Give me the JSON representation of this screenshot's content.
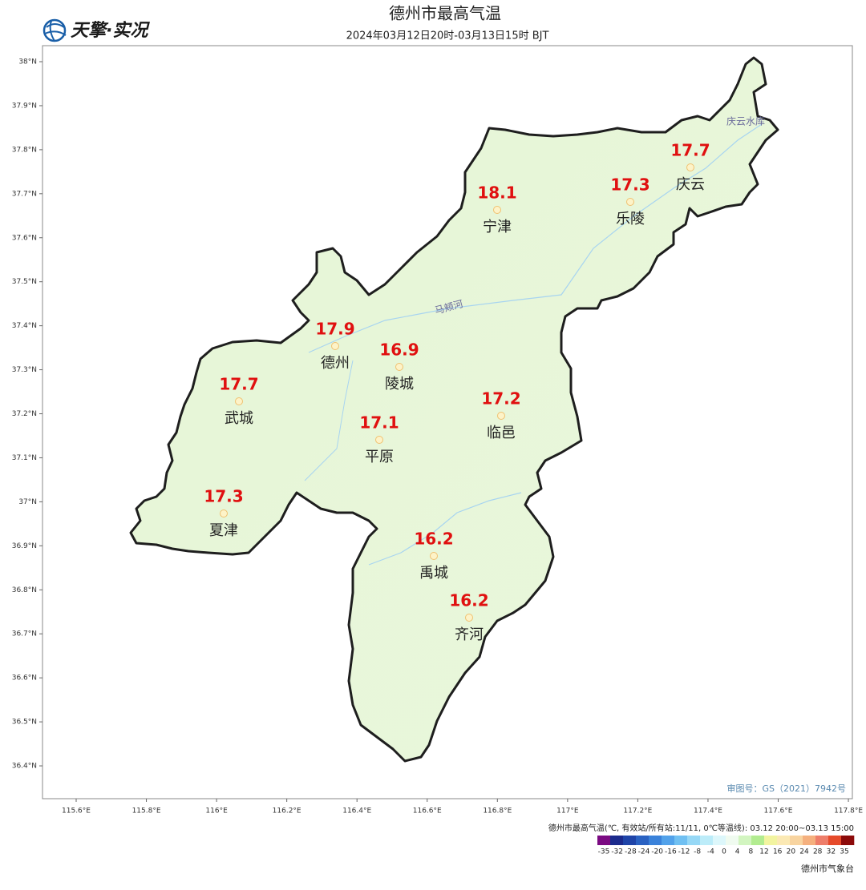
{
  "logo": "天擎·实况",
  "header": {
    "title": "德州市最高气温",
    "subtitle": "2024年03月12日20时-03月13日15时 BJT"
  },
  "lat_ticks": [
    "38°N",
    "37.9°N",
    "37.8°N",
    "37.7°N",
    "37.6°N",
    "37.5°N",
    "37.4°N",
    "37.3°N",
    "37.2°N",
    "37.1°N",
    "37°N",
    "36.9°N",
    "36.8°N",
    "36.7°N",
    "36.6°N",
    "36.5°N",
    "36.4°N"
  ],
  "lon_ticks": [
    "115.6°E",
    "115.8°E",
    "116°E",
    "116.2°E",
    "116.4°E",
    "116.6°E",
    "116.8°E",
    "117°E",
    "117.2°E",
    "117.4°E",
    "117.6°E",
    "117.8°E"
  ],
  "water_labels": [
    "马颊河",
    "庆云水库"
  ],
  "stations": [
    {
      "name": "宁津",
      "value": 18.1
    },
    {
      "name": "乐陵",
      "value": 17.3
    },
    {
      "name": "庆云",
      "value": 17.7
    },
    {
      "name": "德州",
      "value": 17.9
    },
    {
      "name": "陵城",
      "value": 16.9
    },
    {
      "name": "武城",
      "value": 17.7
    },
    {
      "name": "平原",
      "value": 17.1
    },
    {
      "name": "临邑",
      "value": 17.2
    },
    {
      "name": "夏津",
      "value": 17.3
    },
    {
      "name": "禹城",
      "value": 16.2
    },
    {
      "name": "齐河",
      "value": 16.2
    }
  ],
  "value_color": "#e01010",
  "approval": "审图号：GS（2021）7942号",
  "legend": {
    "caption": "德州市最高气温(℃, 有效站/所有站:11/11, 0℃等温线): 03.12 20:00~03.13 15:00",
    "ticks": [
      -35,
      -32,
      -28,
      -24,
      -20,
      -16,
      -12,
      -8,
      -4,
      0,
      4,
      8,
      12,
      16,
      20,
      24,
      28,
      32,
      35
    ],
    "colors": [
      "#7b0a82",
      "#1b2a8c",
      "#1f44a8",
      "#2a62c2",
      "#3a82da",
      "#52a2ea",
      "#70c0f2",
      "#96d8f6",
      "#bcecf9",
      "#ddf7fb",
      "#f0fbf0",
      "#d2f5c0",
      "#b2ec90",
      "#f2f4a0",
      "#fbe9b4",
      "#f8d4a0",
      "#f5b07e",
      "#ee7e6a",
      "#e64a2a",
      "#8c0a0a"
    ]
  },
  "footer": "德州市气象台"
}
